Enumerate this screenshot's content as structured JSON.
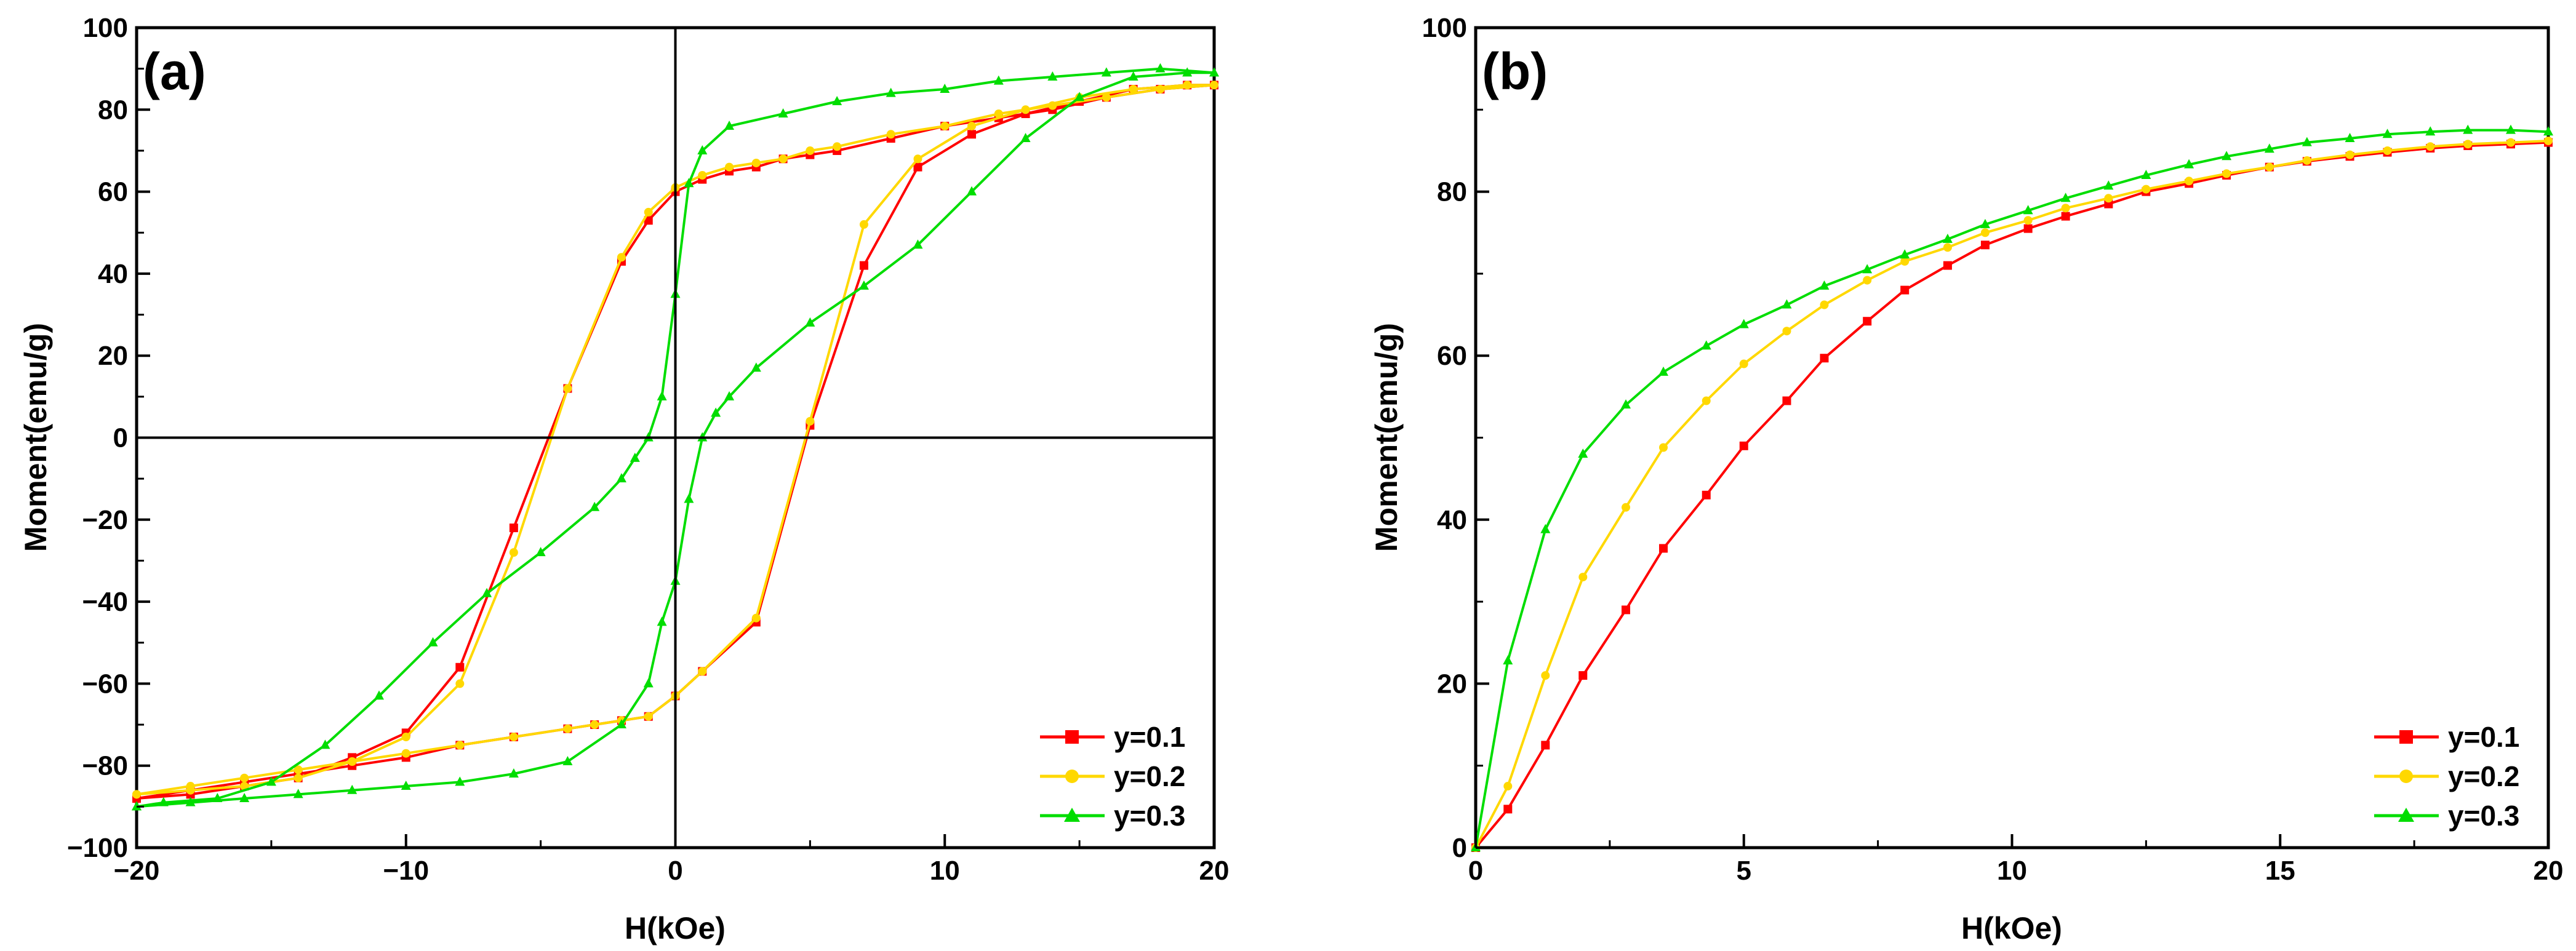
{
  "chart_data": [
    {
      "type": "line",
      "panel_label": "(a)",
      "xlabel": "H(kOe)",
      "ylabel": "Moment(emu/g)",
      "xlim": [
        -20,
        20
      ],
      "ylim": [
        -100,
        100
      ],
      "x_ticks": [
        -20,
        -10,
        0,
        10,
        20
      ],
      "x_tick_labels": [
        "−20",
        "−10",
        "0",
        "10",
        "20"
      ],
      "y_ticks": [
        -100,
        -80,
        -60,
        -40,
        -20,
        0,
        20,
        40,
        60,
        80,
        100
      ],
      "y_tick_labels": [
        "−100",
        "−80",
        "−60",
        "−40",
        "−20",
        "0",
        "20",
        "40",
        "60",
        "80",
        "100"
      ],
      "zero_lines": true,
      "legend_position": "bottom-right",
      "series": [
        {
          "name": "y=0.1",
          "color": "#ff0000",
          "marker": "square",
          "x": [
            -20,
            -18,
            -16,
            -14,
            -12,
            -10,
            -8,
            -6,
            -4,
            -3,
            -2,
            -1,
            0,
            1,
            3,
            5,
            7,
            9,
            11,
            13,
            15,
            17,
            19,
            20,
            18,
            16,
            14,
            12,
            10,
            8,
            6,
            5,
            4,
            3,
            2,
            1,
            0,
            -1,
            -2,
            -4,
            -6,
            -8,
            -10,
            -12,
            -14,
            -16,
            -18,
            -20
          ],
          "y": [
            -88,
            -86,
            -84,
            -82,
            -80,
            -78,
            -75,
            -73,
            -71,
            -70,
            -69,
            -68,
            -63,
            -57,
            -45,
            3,
            42,
            66,
            74,
            79,
            82,
            85,
            86,
            86,
            85,
            83,
            80,
            78,
            76,
            73,
            70,
            69,
            68,
            66,
            65,
            63,
            60,
            53,
            43,
            12,
            -22,
            -56,
            -72,
            -78,
            -83,
            -85,
            -87,
            -88
          ]
        },
        {
          "name": "y=0.2",
          "color": "#ffd800",
          "marker": "circle",
          "x": [
            -20,
            -18,
            -16,
            -14,
            -12,
            -10,
            -8,
            -6,
            -4,
            -3,
            -2,
            -1,
            0,
            1,
            3,
            5,
            7,
            9,
            11,
            13,
            15,
            17,
            19,
            20,
            18,
            16,
            14,
            12,
            10,
            8,
            6,
            5,
            4,
            3,
            2,
            1,
            0,
            -1,
            -2,
            -4,
            -6,
            -8,
            -10,
            -12,
            -14,
            -16,
            -18,
            -20
          ],
          "y": [
            -87,
            -85,
            -83,
            -81,
            -79,
            -77,
            -75,
            -73,
            -71,
            -70,
            -69,
            -68,
            -63,
            -57,
            -44,
            4,
            52,
            68,
            76,
            80,
            83,
            85,
            86,
            86,
            85,
            83,
            81,
            79,
            76,
            74,
            71,
            70,
            68,
            67,
            66,
            64,
            61,
            55,
            44,
            12,
            -28,
            -60,
            -73,
            -79,
            -83,
            -85,
            -86,
            -87
          ]
        },
        {
          "name": "y=0.3",
          "color": "#00dd00",
          "marker": "triangle",
          "x": [
            -20,
            -18,
            -16,
            -14,
            -12,
            -10,
            -8,
            -6,
            -4,
            -2,
            -1,
            -0.5,
            0,
            0.5,
            1,
            1.5,
            2,
            3,
            5,
            7,
            9,
            11,
            13,
            15,
            17,
            19,
            20,
            18,
            16,
            14,
            12,
            10,
            8,
            6,
            4,
            2,
            1,
            0.5,
            0,
            -0.5,
            -1,
            -1.5,
            -2,
            -3,
            -5,
            -7,
            -9,
            -11,
            -13,
            -15,
            -17,
            -19,
            -20
          ],
          "y": [
            -90,
            -89,
            -88,
            -87,
            -86,
            -85,
            -84,
            -82,
            -79,
            -70,
            -60,
            -45,
            -35,
            -15,
            0,
            6,
            10,
            17,
            28,
            37,
            47,
            60,
            73,
            83,
            88,
            89,
            89,
            90,
            89,
            88,
            87,
            85,
            84,
            82,
            79,
            76,
            70,
            62,
            35,
            10,
            0,
            -5,
            -10,
            -17,
            -28,
            -38,
            -50,
            -63,
            -75,
            -84,
            -88,
            -89,
            -90
          ]
        }
      ]
    },
    {
      "type": "line",
      "panel_label": "(b)",
      "xlabel": "H(kOe)",
      "ylabel": "Moment(emu/g)",
      "xlim": [
        0,
        20
      ],
      "ylim": [
        0,
        100
      ],
      "x_ticks": [
        0,
        5,
        10,
        15,
        20
      ],
      "x_tick_labels": [
        "0",
        "5",
        "10",
        "15",
        "20"
      ],
      "y_ticks": [
        0,
        20,
        40,
        60,
        80,
        100
      ],
      "y_tick_labels": [
        "0",
        "20",
        "40",
        "60",
        "80",
        "100"
      ],
      "zero_lines": false,
      "legend_position": "bottom-right",
      "series": [
        {
          "name": "y=0.1",
          "color": "#ff0000",
          "marker": "square",
          "x": [
            0,
            0.6,
            1.3,
            2.0,
            2.8,
            3.5,
            4.3,
            5.0,
            5.8,
            6.5,
            7.3,
            8.0,
            8.8,
            9.5,
            10.3,
            11.0,
            11.8,
            12.5,
            13.3,
            14.0,
            14.8,
            15.5,
            16.3,
            17.0,
            17.8,
            18.5,
            19.3,
            20.0
          ],
          "y": [
            0,
            4.7,
            12.5,
            21,
            29,
            36.5,
            43,
            49,
            54.5,
            59.7,
            64.2,
            68,
            71,
            73.5,
            75.5,
            77,
            78.5,
            80,
            81,
            82,
            83,
            83.7,
            84.3,
            84.8,
            85.3,
            85.6,
            85.8,
            86
          ]
        },
        {
          "name": "y=0.2",
          "color": "#ffd800",
          "marker": "circle",
          "x": [
            0,
            0.6,
            1.3,
            2.0,
            2.8,
            3.5,
            4.3,
            5.0,
            5.8,
            6.5,
            7.3,
            8.0,
            8.8,
            9.5,
            10.3,
            11.0,
            11.8,
            12.5,
            13.3,
            14.0,
            14.8,
            15.5,
            16.3,
            17.0,
            17.8,
            18.5,
            19.3,
            20.0
          ],
          "y": [
            0,
            7.5,
            21,
            33,
            41.5,
            48.8,
            54.5,
            59,
            63,
            66.2,
            69.2,
            71.5,
            73.2,
            75,
            76.5,
            78,
            79.2,
            80.3,
            81.3,
            82.2,
            83,
            83.8,
            84.5,
            85,
            85.5,
            85.8,
            86,
            86.2
          ]
        },
        {
          "name": "y=0.3",
          "color": "#00dd00",
          "marker": "triangle",
          "x": [
            0,
            0.6,
            1.3,
            2.0,
            2.8,
            3.5,
            4.3,
            5.0,
            5.8,
            6.5,
            7.3,
            8.0,
            8.8,
            9.5,
            10.3,
            11.0,
            11.8,
            12.5,
            13.3,
            14.0,
            14.8,
            15.5,
            16.3,
            17.0,
            17.8,
            18.5,
            19.3,
            20.0
          ],
          "y": [
            0,
            22.8,
            38.8,
            48,
            54,
            58,
            61.2,
            63.8,
            66.2,
            68.5,
            70.5,
            72.3,
            74.2,
            76,
            77.7,
            79.2,
            80.7,
            82,
            83.3,
            84.3,
            85.2,
            86,
            86.5,
            87,
            87.3,
            87.5,
            87.5,
            87.3
          ]
        }
      ]
    }
  ]
}
